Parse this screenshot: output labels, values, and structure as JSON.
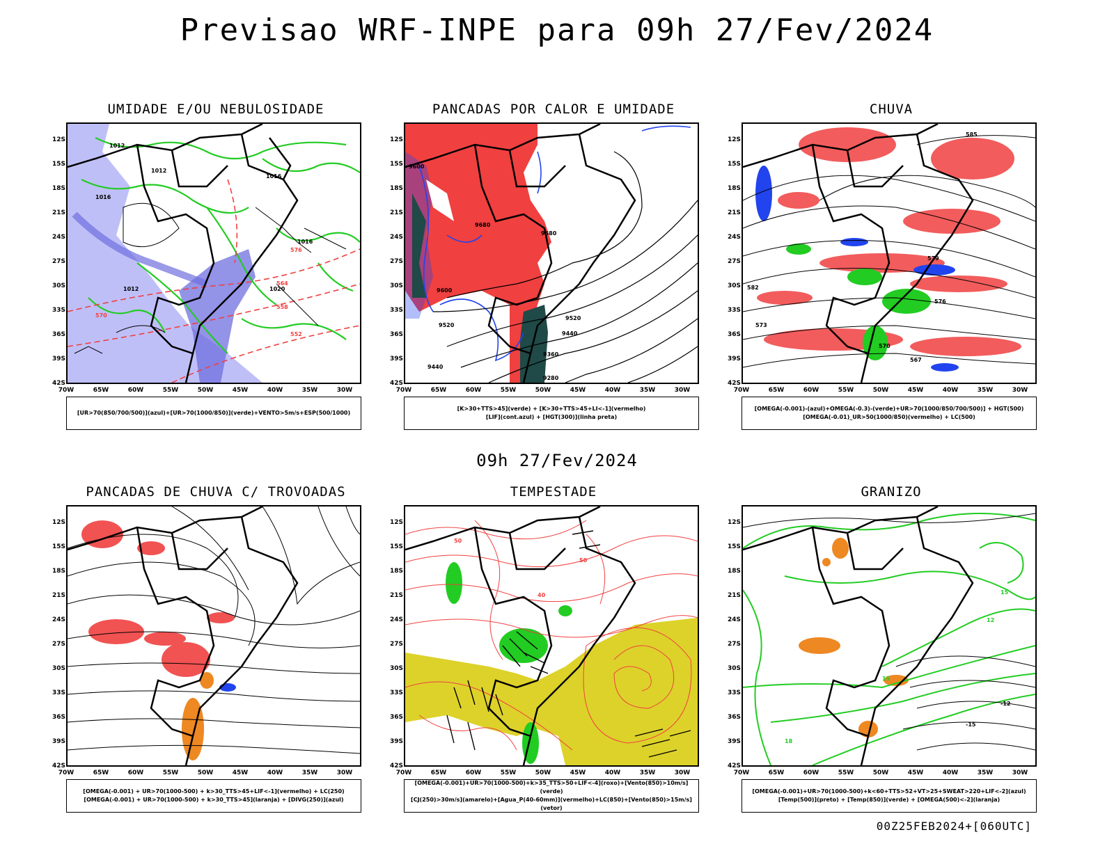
{
  "main_title": "Previsao WRF-INPE  para 09h 27/Fev/2024",
  "mid_title": "09h 27/Fev/2024",
  "footer": "00Z25FEB2024+[060UTC]",
  "lat_labels": [
    "12S",
    "15S",
    "18S",
    "21S",
    "24S",
    "27S",
    "30S",
    "33S",
    "36S",
    "39S",
    "42S"
  ],
  "lon_labels": [
    "70W",
    "65W",
    "60W",
    "55W",
    "50W",
    "45W",
    "40W",
    "35W",
    "30W"
  ],
  "colors": {
    "humid_blue": "#a9a9f5",
    "humid_dark_blue": "#6f6fe0",
    "green_line": "#22cc22",
    "red_fill": "#f04040",
    "dark_teal": "#1f4a47",
    "yellow_fill": "#ddd22a",
    "orange": "#ee8822",
    "blue": "#2244ee",
    "black": "#000000"
  },
  "panels": [
    {
      "title": "UMIDADE E/OU NEBULOSIDADE",
      "legend": [
        "[UR>70(850/700/500)](azul)+[UR>70(1000/850)](verde)+VENTO>5m/s+ESP(500/1000)"
      ],
      "contour_labels": [
        "1012",
        "1012",
        "1016",
        "1016",
        "1016",
        "1020",
        "1012",
        "570",
        "576",
        "564",
        "558",
        "552"
      ]
    },
    {
      "title": "PANCADAS POR CALOR E UMIDADE",
      "legend": [
        "[K>30+TTS>45](verde) + [K>30+TTS>45+LI<-1](vermelho)",
        "[LIF](cont.azul) + [HGT(300)](linha preta)"
      ],
      "contour_labels": [
        "9600",
        "9680",
        "9680",
        "9600",
        "9520",
        "9440",
        "9360",
        "9280",
        "9520",
        "9440"
      ]
    },
    {
      "title": "CHUVA",
      "legend": [
        "[OMEGA(-0.001)-(azul)+OMEGA(-0.3)-(verde)+UR>70(1000/850/700/500)] + HGT(500)",
        "[OMEGA(-0.01)_UR>50(1000/850)(vermelho) + LC(500)"
      ],
      "contour_labels": [
        "585",
        "582",
        "579",
        "576",
        "573",
        "570",
        "567"
      ]
    },
    {
      "title": "PANCADAS DE CHUVA C/ TROVOADAS",
      "legend": [
        "[OMEGA(-0.001) + UR>70(1000-500) + k>30_TTS>45+LIF<-1](vermelho) + LC(250)",
        "[OMEGA(-0.001) + UR>70(1000-500) + k>30_TTS>45](laranja) + [DIVG(250)](azul)"
      ],
      "contour_labels": []
    },
    {
      "title": "TEMPESTADE",
      "legend": [
        "[OMEGA(-0.001)+UR>70(1000-500)+k>35_TTS>50+LIF<-4](roxo)+[Vento(850)>10m/s](verde)",
        "[CJ(250)>30m/s](amarelo)+[Agua_P(40-60mm)](vermelho)+LC(850)+[Vento(850)>15m/s](vetor)"
      ],
      "contour_labels": [
        "50",
        "40",
        "50"
      ]
    },
    {
      "title": "GRANIZO",
      "legend": [
        "[OMEGA(-0.001)+UR>70(1000-500)+k<60+TTS>52+VT>25+SWEAT>220+LIF<-2](azul)",
        "[Temp(500)](preto) + [Temp(850)](verde) + [OMEGA(500)<-2](laranja)"
      ],
      "contour_labels": [
        "-12",
        "-15",
        "15",
        "12",
        "15",
        "18"
      ]
    }
  ]
}
